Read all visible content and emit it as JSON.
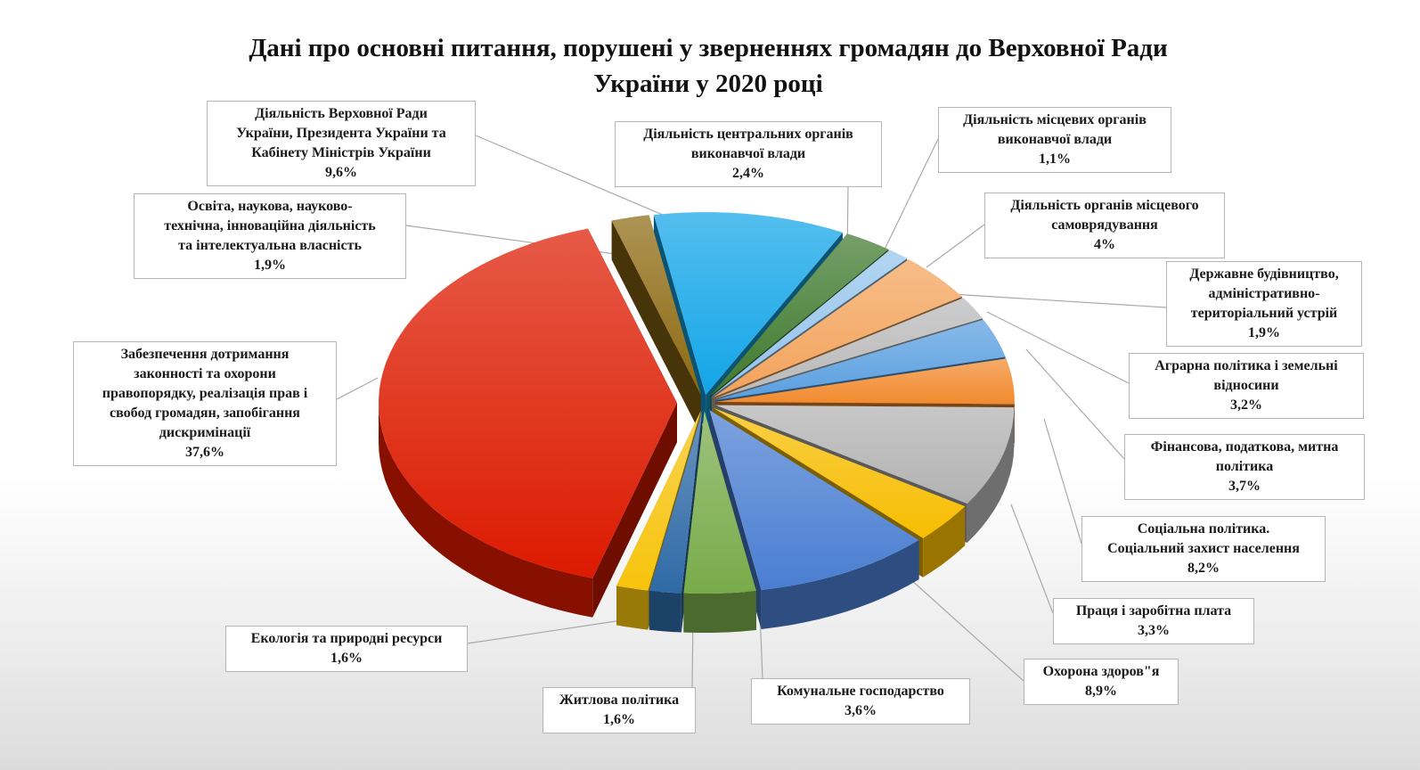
{
  "chart_data": {
    "type": "pie",
    "style": "3d-exploded",
    "title": [
      "Дані про основні питання, порушені у зверненнях громадян до Верховної Ради",
      "України  у 2020 році"
    ],
    "slices": [
      {
        "name": "Діяльність Верховної Ради України, Президента України та Кабінету Міністрів України",
        "value": 9.6,
        "label": "9,6%",
        "color": "#12a5e8"
      },
      {
        "name": "Діяльність центральних органів виконавчої влади",
        "value": 2.4,
        "label": "2,4%",
        "color": "#3f7a2e"
      },
      {
        "name": "Діяльність місцевих органів виконавчої влади",
        "value": 1.1,
        "label": "1,1%",
        "color": "#94c4ec"
      },
      {
        "name": "Діяльність органів місцевого самоврядування",
        "value": 4,
        "label": "4%",
        "color": "#f3a35b"
      },
      {
        "name": "Державне будівництво, адміністративно-територіальний устрій",
        "value": 1.9,
        "label": "1,9%",
        "color": "#b9b9b9"
      },
      {
        "name": "Аграрна політика і земельні відносини",
        "value": 3.2,
        "label": "3,2%",
        "color": "#5a9fe0"
      },
      {
        "name": "Фінансова, податкова, митна політика",
        "value": 3.7,
        "label": "3,7%",
        "color": "#f28a2e"
      },
      {
        "name": "Соціальна політика. Соціальний захист населення",
        "value": 8.2,
        "label": "8,2%",
        "color": "#b2b2b2"
      },
      {
        "name": "Праця і заробітна плата",
        "value": 3.3,
        "label": "3,3%",
        "color": "#f7bd00"
      },
      {
        "name": "Охорона здоров\"я",
        "value": 8.9,
        "label": "8,9%",
        "color": "#4a7ed2"
      },
      {
        "name": "Комунальне господарство",
        "value": 3.6,
        "label": "3,6%",
        "color": "#78ab4a"
      },
      {
        "name": "Житлова політика",
        "value": 1.6,
        "label": "1,6%",
        "color": "#2f6aa6"
      },
      {
        "name": "Екологія та природні ресурси",
        "value": 1.6,
        "label": "1,6%",
        "color": "#f7c30c"
      },
      {
        "name": "Забезпечення дотримання законності та охорони правопорядку, реалізація прав і свобод громадян, запобігання дискримінації",
        "value": 37.6,
        "label": "37,6%",
        "color": "#dc1a00"
      },
      {
        "name": "Освіта, наукова, науково-технічна, інноваційна діяльність та інтелектуальна власність",
        "value": 1.9,
        "label": "1,9%",
        "color": "#8d6a12"
      }
    ]
  },
  "labels": [
    {
      "lines": [
        "Діяльність Верховної Ради",
        "України, Президента України та",
        "Кабінету Міністрів України"
      ],
      "pct": "9,6%"
    },
    {
      "lines": [
        "Діяльність центральних органів",
        "виконавчої влади"
      ],
      "pct": "2,4%"
    },
    {
      "lines": [
        "Діяльність місцевих органів",
        "виконавчої влади"
      ],
      "pct": "1,1%"
    },
    {
      "lines": [
        "Діяльність органів місцевого",
        "самоврядування"
      ],
      "pct": "4%"
    },
    {
      "lines": [
        "Державне будівництво,",
        "адміністративно-",
        "територіальний устрій"
      ],
      "pct": "1,9%"
    },
    {
      "lines": [
        "Аграрна політика і земельні",
        "відносини"
      ],
      "pct": "3,2%"
    },
    {
      "lines": [
        "Фінансова, податкова, митна",
        "політика"
      ],
      "pct": "3,7%"
    },
    {
      "lines": [
        "Соціальна політика.",
        "Соціальний захист населення"
      ],
      "pct": "8,2%"
    },
    {
      "lines": [
        "Праця і заробітна плата"
      ],
      "pct": "3,3%"
    },
    {
      "lines": [
        "Охорона здоров\"я"
      ],
      "pct": "8,9%"
    },
    {
      "lines": [
        "Комунальне господарство"
      ],
      "pct": "3,6%"
    },
    {
      "lines": [
        "Житлова політика"
      ],
      "pct": "1,6%"
    },
    {
      "lines": [
        "Екологія та природні ресурси"
      ],
      "pct": "1,6%"
    },
    {
      "lines": [
        "Забезпечення дотримання",
        "законності та охорони",
        "правопорядку, реалізація прав і",
        "свобод громадян, запобігання",
        "дискримінації"
      ],
      "pct": "37,6%"
    },
    {
      "lines": [
        "Освіта, наукова, науково-",
        "технічна, інноваційна діяльність",
        "та інтелектуальна власність"
      ],
      "pct": "1,9%"
    }
  ]
}
